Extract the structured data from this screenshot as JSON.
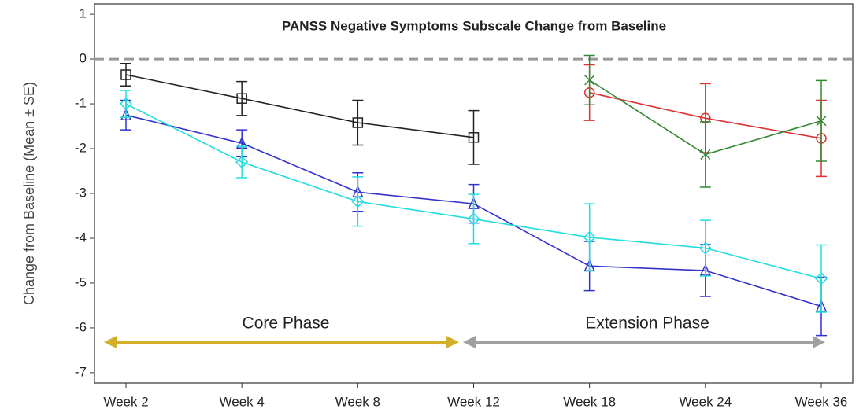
{
  "chart_data": {
    "type": "line",
    "title": "PANSS Negative Symptoms Subscale Change from Baseline",
    "ylabel": "Change from Baseline (Mean ± SE)",
    "categories": [
      "Week 2",
      "Week 4",
      "Week 8",
      "Week 12",
      "Week 18",
      "Week 24",
      "Week 36"
    ],
    "ylim": [
      -7.23,
      1.23
    ],
    "yticks": [
      1,
      {
        "value": 0,
        "label": "0"
      },
      -1,
      -2,
      -3,
      -4,
      -5,
      -6,
      -7
    ],
    "hline": 0,
    "annotations": [
      "Core Phase",
      "Extension Phase"
    ],
    "series": [
      {
        "color": "#222222",
        "marker": "square",
        "values": [
          -0.35,
          -0.88,
          -1.42,
          -1.75,
          null,
          null,
          null
        ],
        "errors": [
          0.25,
          0.38,
          0.5,
          0.6,
          null,
          null,
          null
        ]
      },
      {
        "color": "#3333cc",
        "marker": "triangle",
        "values": [
          -1.25,
          -1.88,
          -2.97,
          -3.23,
          -4.62,
          -4.72,
          -5.52
        ],
        "errors": [
          0.33,
          0.3,
          0.43,
          0.43,
          0.55,
          0.58,
          0.65
        ]
      },
      {
        "color": "#22dddd",
        "marker": "diamond",
        "values": [
          -1.0,
          -2.3,
          -3.18,
          -3.57,
          -3.98,
          -4.22,
          -4.9
        ],
        "errors": [
          0.3,
          0.35,
          0.55,
          0.55,
          0.75,
          0.62,
          0.75
        ]
      },
      {
        "color": "#dd3333",
        "marker": "circle",
        "values": [
          null,
          null,
          null,
          null,
          -0.75,
          -1.32,
          -1.77
        ],
        "errors": [
          null,
          null,
          null,
          null,
          0.62,
          0.77,
          0.85
        ]
      },
      {
        "color": "#338833",
        "marker": "x",
        "values": [
          null,
          null,
          null,
          null,
          -0.47,
          -2.13,
          -1.38
        ],
        "errors": [
          null,
          null,
          null,
          null,
          0.55,
          0.73,
          0.9
        ]
      }
    ]
  }
}
